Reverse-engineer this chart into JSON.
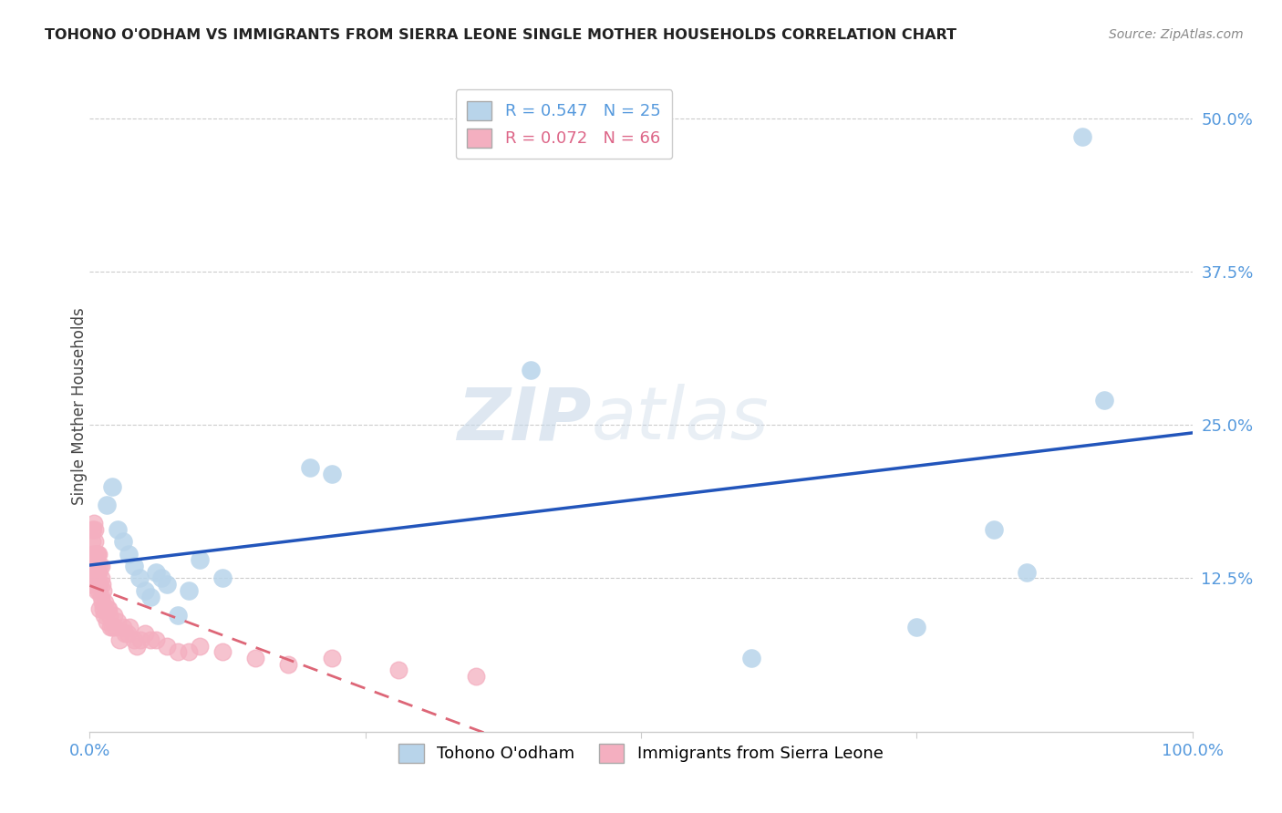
{
  "title": "TOHONO O'ODHAM VS IMMIGRANTS FROM SIERRA LEONE SINGLE MOTHER HOUSEHOLDS CORRELATION CHART",
  "source": "Source: ZipAtlas.com",
  "ylabel": "Single Mother Households",
  "legend_blue_label": "Tohono O'odham",
  "legend_pink_label": "Immigrants from Sierra Leone",
  "r_blue": 0.547,
  "n_blue": 25,
  "r_pink": 0.072,
  "n_pink": 66,
  "blue_color": "#b8d4ea",
  "pink_color": "#f4afc0",
  "line_blue_color": "#2255bb",
  "line_pink_color": "#dd6677",
  "blue_scatter_x": [
    0.015,
    0.02,
    0.025,
    0.03,
    0.035,
    0.04,
    0.045,
    0.05,
    0.055,
    0.06,
    0.065,
    0.07,
    0.08,
    0.09,
    0.1,
    0.12,
    0.2,
    0.22,
    0.4,
    0.6,
    0.75,
    0.82,
    0.85,
    0.9,
    0.92
  ],
  "blue_scatter_y": [
    0.185,
    0.2,
    0.165,
    0.155,
    0.145,
    0.135,
    0.125,
    0.115,
    0.11,
    0.13,
    0.125,
    0.12,
    0.095,
    0.115,
    0.14,
    0.125,
    0.215,
    0.21,
    0.295,
    0.06,
    0.085,
    0.165,
    0.13,
    0.485,
    0.27
  ],
  "pink_scatter_x": [
    0.001,
    0.001,
    0.002,
    0.002,
    0.002,
    0.003,
    0.003,
    0.003,
    0.004,
    0.004,
    0.004,
    0.005,
    0.005,
    0.005,
    0.005,
    0.006,
    0.006,
    0.006,
    0.007,
    0.007,
    0.007,
    0.008,
    0.008,
    0.008,
    0.009,
    0.009,
    0.009,
    0.01,
    0.01,
    0.01,
    0.011,
    0.011,
    0.012,
    0.012,
    0.013,
    0.014,
    0.015,
    0.016,
    0.017,
    0.018,
    0.019,
    0.02,
    0.022,
    0.023,
    0.025,
    0.027,
    0.03,
    0.032,
    0.034,
    0.036,
    0.04,
    0.043,
    0.046,
    0.05,
    0.055,
    0.06,
    0.07,
    0.08,
    0.09,
    0.1,
    0.12,
    0.15,
    0.18,
    0.22,
    0.28,
    0.35
  ],
  "pink_scatter_y": [
    0.14,
    0.12,
    0.155,
    0.165,
    0.13,
    0.145,
    0.165,
    0.14,
    0.145,
    0.17,
    0.125,
    0.125,
    0.14,
    0.155,
    0.165,
    0.115,
    0.135,
    0.145,
    0.12,
    0.13,
    0.145,
    0.115,
    0.13,
    0.145,
    0.1,
    0.12,
    0.135,
    0.11,
    0.125,
    0.135,
    0.105,
    0.12,
    0.1,
    0.115,
    0.095,
    0.105,
    0.09,
    0.1,
    0.1,
    0.095,
    0.085,
    0.085,
    0.095,
    0.085,
    0.09,
    0.075,
    0.085,
    0.08,
    0.08,
    0.085,
    0.075,
    0.07,
    0.075,
    0.08,
    0.075,
    0.075,
    0.07,
    0.065,
    0.065,
    0.07,
    0.065,
    0.06,
    0.055,
    0.06,
    0.05,
    0.045
  ],
  "xlim": [
    0.0,
    1.0
  ],
  "ylim": [
    0.0,
    0.53
  ],
  "ytick_values": [
    0.125,
    0.25,
    0.375,
    0.5
  ],
  "ytick_labels": [
    "12.5%",
    "25.0%",
    "37.5%",
    "50.0%"
  ],
  "watermark_zip": "ZIP",
  "watermark_atlas": "atlas",
  "background_color": "#ffffff"
}
